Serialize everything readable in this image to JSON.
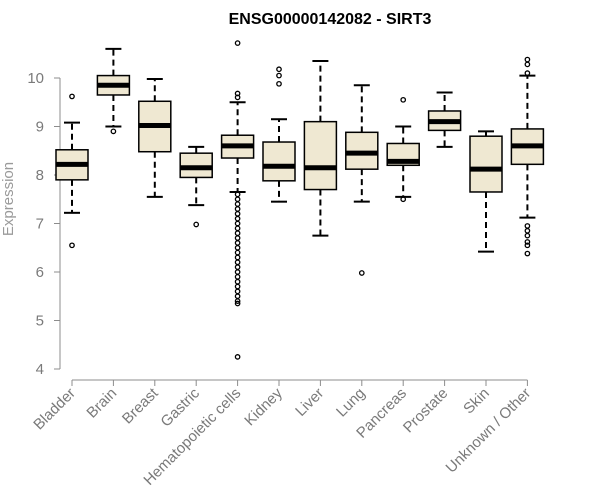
{
  "chart_data": {
    "type": "box",
    "title": "ENSG00000142082 - SIRT3",
    "ylabel": "Expression",
    "xlabel": "",
    "ylim": [
      4,
      10.7
    ],
    "yticks": [
      4,
      5,
      6,
      7,
      8,
      9,
      10
    ],
    "grid": false,
    "colors": {
      "box_fill": "#efe8d2",
      "stroke": "#000000",
      "axis": "#8c8c8c"
    },
    "categories": [
      "Bladder",
      "Brain",
      "Breast",
      "Gastric",
      "Hematopoietic cells",
      "Kidney",
      "Liver",
      "Lung",
      "Pancreas",
      "Prostate",
      "Skin",
      "Unknown / Other"
    ],
    "boxes": [
      {
        "category": "Bladder",
        "whisker_low": 7.22,
        "q1": 7.9,
        "median": 8.22,
        "q3": 8.52,
        "whisker_high": 9.08,
        "outliers": [
          9.62,
          6.55
        ]
      },
      {
        "category": "Brain",
        "whisker_low": 9.0,
        "q1": 9.65,
        "median": 9.85,
        "q3": 10.05,
        "whisker_high": 10.6,
        "outliers": [
          8.9
        ]
      },
      {
        "category": "Breast",
        "whisker_low": 7.55,
        "q1": 8.48,
        "median": 9.02,
        "q3": 9.52,
        "whisker_high": 9.98,
        "outliers": []
      },
      {
        "category": "Gastric",
        "whisker_low": 7.38,
        "q1": 7.95,
        "median": 8.15,
        "q3": 8.45,
        "whisker_high": 8.58,
        "outliers": [
          6.98
        ]
      },
      {
        "category": "Hematopoietic cells",
        "whisker_low": 7.65,
        "q1": 8.35,
        "median": 8.6,
        "q3": 8.82,
        "whisker_high": 9.5,
        "outliers": [
          10.72,
          9.68,
          9.6,
          7.6,
          7.5,
          7.4,
          7.3,
          7.2,
          7.1,
          7.0,
          6.9,
          6.8,
          6.7,
          6.6,
          6.5,
          6.4,
          6.3,
          6.2,
          6.1,
          6.0,
          5.9,
          5.8,
          5.7,
          5.6,
          5.5,
          5.4,
          5.35,
          4.25
        ]
      },
      {
        "category": "Kidney",
        "whisker_low": 7.45,
        "q1": 7.88,
        "median": 8.18,
        "q3": 8.68,
        "whisker_high": 9.15,
        "outliers": [
          9.88,
          10.05,
          10.18
        ]
      },
      {
        "category": "Liver",
        "whisker_low": 6.75,
        "q1": 7.7,
        "median": 8.15,
        "q3": 9.1,
        "whisker_high": 10.35,
        "outliers": []
      },
      {
        "category": "Lung",
        "whisker_low": 7.45,
        "q1": 8.12,
        "median": 8.45,
        "q3": 8.88,
        "whisker_high": 9.85,
        "outliers": [
          5.98
        ]
      },
      {
        "category": "Pancreas",
        "whisker_low": 7.55,
        "q1": 8.2,
        "median": 8.28,
        "q3": 8.65,
        "whisker_high": 9.0,
        "outliers": [
          9.55,
          7.5
        ]
      },
      {
        "category": "Prostate",
        "whisker_low": 8.58,
        "q1": 8.92,
        "median": 9.1,
        "q3": 9.32,
        "whisker_high": 9.7,
        "outliers": []
      },
      {
        "category": "Skin",
        "whisker_low": 6.42,
        "q1": 7.65,
        "median": 8.12,
        "q3": 8.8,
        "whisker_high": 8.9,
        "outliers": []
      },
      {
        "category": "Unknown / Other",
        "whisker_low": 7.12,
        "q1": 8.22,
        "median": 8.6,
        "q3": 8.95,
        "whisker_high": 10.05,
        "outliers": [
          10.38,
          10.28,
          10.1,
          6.95,
          6.85,
          6.75,
          6.62,
          6.55,
          6.38
        ]
      }
    ]
  }
}
